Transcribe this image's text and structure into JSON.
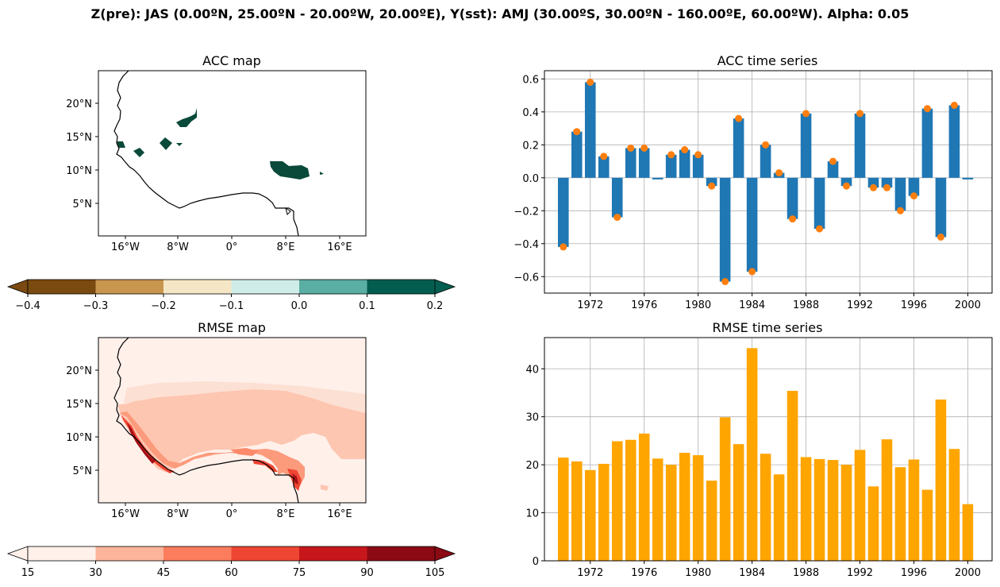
{
  "figure": {
    "suptitle": "Z(pre): JAS (0.00ºN, 25.00ºN - 20.00ºW, 20.00ºE), Y(sst): AMJ (30.00ºS, 30.00ºN - 160.00ºE, 60.00ºW). Alpha: 0.05"
  },
  "chart_data": [
    {
      "type": "heatmap",
      "title": "ACC map",
      "lon_ticks": [
        "16°W",
        "8°W",
        "0°",
        "8°E",
        "16°E"
      ],
      "lat_ticks": [
        "5°N",
        "10°N",
        "15°N",
        "20°N"
      ],
      "colorbar": {
        "ticks": [
          "−0.4",
          "−0.3",
          "−0.2",
          "−0.1",
          "0.0",
          "0.1",
          "0.2"
        ],
        "colors": [
          "#7a4a10",
          "#c8964f",
          "#f5e7c5",
          "#cfece8",
          "#5aaea3",
          "#045e50"
        ],
        "extend": "both"
      }
    },
    {
      "type": "bar",
      "title": "ACC time series",
      "x": [
        1970,
        1971,
        1972,
        1973,
        1974,
        1975,
        1976,
        1977,
        1978,
        1979,
        1980,
        1981,
        1982,
        1983,
        1984,
        1985,
        1986,
        1987,
        1988,
        1989,
        1990,
        1991,
        1992,
        1993,
        1994,
        1995,
        1996,
        1997,
        1998,
        1999,
        2000
      ],
      "values": [
        -0.42,
        0.28,
        0.58,
        0.13,
        -0.24,
        0.18,
        0.18,
        -0.01,
        0.14,
        0.17,
        0.14,
        -0.05,
        -0.63,
        0.36,
        -0.57,
        0.2,
        0.03,
        -0.25,
        0.39,
        -0.31,
        0.1,
        -0.05,
        0.39,
        -0.06,
        -0.06,
        -0.2,
        -0.11,
        0.42,
        -0.36,
        0.44,
        -0.01
      ],
      "points_x": [
        1970,
        1971,
        1972,
        1973,
        1974,
        1975,
        1976,
        1978,
        1979,
        1980,
        1981,
        1982,
        1983,
        1984,
        1985,
        1986,
        1987,
        1988,
        1989,
        1990,
        1991,
        1992,
        1993,
        1994,
        1995,
        1996,
        1997,
        1998,
        1999
      ],
      "points_y": [
        -0.42,
        0.28,
        0.58,
        0.13,
        -0.24,
        0.18,
        0.18,
        0.14,
        0.17,
        0.14,
        -0.05,
        -0.63,
        0.36,
        -0.57,
        0.2,
        0.03,
        -0.25,
        0.39,
        -0.31,
        0.1,
        -0.05,
        0.39,
        -0.06,
        -0.06,
        -0.2,
        -0.11,
        0.42,
        -0.36,
        0.44
      ],
      "xticks": [
        "1972",
        "1976",
        "1980",
        "1984",
        "1988",
        "1992",
        "1996",
        "2000"
      ],
      "ytick_values": [
        -0.6,
        -0.4,
        -0.2,
        0.0,
        0.2,
        0.4,
        0.6
      ],
      "ytick_labels": [
        "−0.6",
        "−0.4",
        "−0.2",
        "0.0",
        "0.2",
        "0.4",
        "0.6"
      ],
      "ylim": [
        -0.7,
        0.65
      ],
      "xlim": [
        1968.6,
        2001.8
      ],
      "bar_color": "#1f77b4",
      "point_color": "#ff7f0e",
      "grid": true
    },
    {
      "type": "heatmap",
      "title": "RMSE map",
      "lon_ticks": [
        "16°W",
        "8°W",
        "0°",
        "8°E",
        "16°E"
      ],
      "lat_ticks": [
        "5°N",
        "10°N",
        "15°N",
        "20°N"
      ],
      "colorbar": {
        "ticks": [
          "15",
          "30",
          "45",
          "60",
          "75",
          "90",
          "105"
        ],
        "colors": [
          "#fff0ea",
          "#fcb59a",
          "#fb7d5d",
          "#ef4533",
          "#c8171c",
          "#8b0a14"
        ],
        "extend": "both"
      }
    },
    {
      "type": "bar",
      "title": "RMSE time series",
      "x": [
        1970,
        1971,
        1972,
        1973,
        1974,
        1975,
        1976,
        1977,
        1978,
        1979,
        1980,
        1981,
        1982,
        1983,
        1984,
        1985,
        1986,
        1987,
        1988,
        1989,
        1990,
        1991,
        1992,
        1993,
        1994,
        1995,
        1996,
        1997,
        1998,
        1999,
        2000
      ],
      "values": [
        21.5,
        20.7,
        18.9,
        20.2,
        24.9,
        25.2,
        26.5,
        21.3,
        20.0,
        22.5,
        22.0,
        16.7,
        29.9,
        24.3,
        44.3,
        22.3,
        18.0,
        35.4,
        21.6,
        21.2,
        21.0,
        20.0,
        23.1,
        15.5,
        25.3,
        19.5,
        21.1,
        14.8,
        33.6,
        23.3,
        11.8
      ],
      "xticks": [
        "1972",
        "1976",
        "1980",
        "1984",
        "1988",
        "1992",
        "1996",
        "2000"
      ],
      "ytick_values": [
        0,
        10,
        20,
        30,
        40
      ],
      "ytick_labels": [
        "0",
        "10",
        "20",
        "30",
        "40"
      ],
      "ylim": [
        0,
        46.5
      ],
      "xlim": [
        1968.6,
        2001.8
      ],
      "bar_color": "#ffa500",
      "grid": true
    }
  ]
}
